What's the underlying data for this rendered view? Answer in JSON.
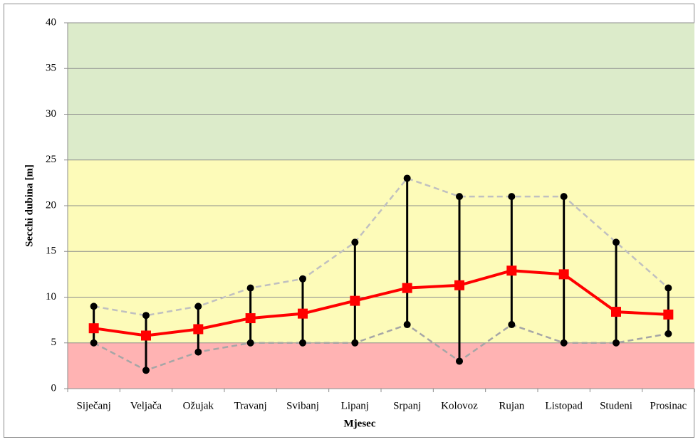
{
  "chart_data": {
    "type": "line",
    "x_label": "Mjesec",
    "y_label": "Secchi dubina  [m]",
    "categories": [
      "Siječanj",
      "Veljača",
      "Ožujak",
      "Travanj",
      "Svibanj",
      "Lipanj",
      "Srpanj",
      "Kolovoz",
      "Rujan",
      "Listopad",
      "Studeni",
      "Prosinac"
    ],
    "series": [
      {
        "color": "#c0c0c0",
        "dashed": true,
        "marker": "circle",
        "marker_color": "#000000",
        "values": [
          9,
          8,
          9,
          11,
          12,
          16,
          23,
          21,
          21,
          21,
          16,
          11
        ]
      },
      {
        "color": "#a6a6a6",
        "dashed": true,
        "marker": "circle",
        "marker_color": "#000000",
        "values": [
          5,
          2,
          4,
          5,
          5,
          5,
          7,
          3,
          7,
          5,
          5,
          6
        ]
      },
      {
        "color": "#ff0000",
        "dashed": false,
        "marker": "square",
        "marker_color": "#ff0000",
        "values": [
          6.6,
          5.8,
          6.5,
          7.7,
          8.2,
          9.6,
          11.0,
          11.3,
          12.9,
          12.5,
          8.4,
          8.1
        ]
      }
    ],
    "range_lines": {
      "color": "#000000",
      "from_series": 1,
      "to_series": 0
    },
    "bands": [
      {
        "from": 0,
        "to": 5,
        "color": "#ffb3b3"
      },
      {
        "from": 5,
        "to": 25,
        "color": "#fdfbb9"
      },
      {
        "from": 25,
        "to": 40,
        "color": "#dcebca"
      }
    ],
    "ylim": [
      0,
      40
    ],
    "yticks": [
      0,
      5,
      10,
      15,
      20,
      25,
      30,
      35,
      40
    ],
    "grid": true
  }
}
